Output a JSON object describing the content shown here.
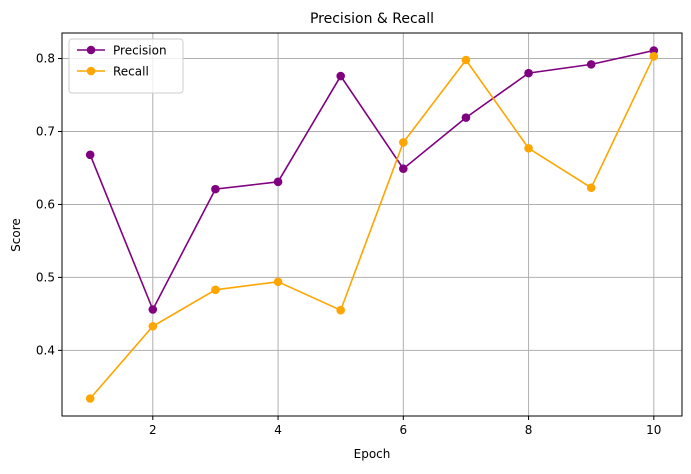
{
  "chart_data": {
    "type": "line",
    "title": "Precision & Recall",
    "xlabel": "Epoch",
    "ylabel": "Score",
    "x": [
      1,
      2,
      3,
      4,
      5,
      6,
      7,
      8,
      9,
      10
    ],
    "xlim": [
      0.55,
      10.45
    ],
    "ylim": [
      0.31,
      0.835
    ],
    "xticks": [
      2,
      4,
      6,
      8,
      10
    ],
    "yticks": [
      0.4,
      0.5,
      0.6,
      0.7,
      0.8
    ],
    "xtick_labels": [
      "2",
      "4",
      "6",
      "8",
      "10"
    ],
    "ytick_labels": [
      "0.4",
      "0.5",
      "0.6",
      "0.7",
      "0.8"
    ],
    "grid": true,
    "legend_position": "top-left",
    "series": [
      {
        "name": "Precision",
        "color": "#800080",
        "marker": "circle",
        "values": [
          0.668,
          0.456,
          0.621,
          0.631,
          0.776,
          0.649,
          0.719,
          0.78,
          0.792,
          0.811
        ]
      },
      {
        "name": "Recall",
        "color": "#FFA500",
        "marker": "circle",
        "values": [
          0.334,
          0.433,
          0.483,
          0.494,
          0.455,
          0.685,
          0.798,
          0.677,
          0.623,
          0.803
        ]
      }
    ]
  }
}
